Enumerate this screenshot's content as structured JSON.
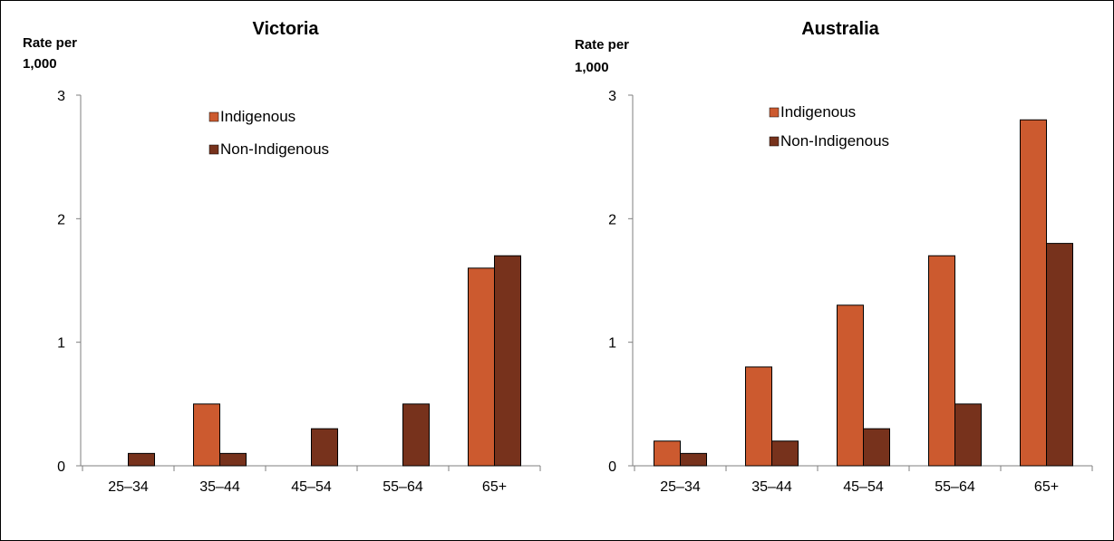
{
  "chart_data": [
    {
      "type": "bar",
      "title": "Victoria",
      "ylabel": "Rate per 1,000",
      "ylabel_lines": [
        "Rate per",
        "1,000"
      ],
      "xlabel": "",
      "categories": [
        "25–34",
        "35–44",
        "45–54",
        "55–64",
        "65+"
      ],
      "ylim": [
        0,
        3
      ],
      "yticks": [
        "0",
        "1",
        "2",
        "3"
      ],
      "legend_placement": "top-center",
      "series": [
        {
          "name": "Indigenous",
          "color": "#cc5a2f",
          "values": [
            0,
            0.5,
            0,
            0,
            1.6
          ]
        },
        {
          "name": "Non-Indigenous",
          "color": "#77321c",
          "values": [
            0.1,
            0.1,
            0.3,
            0.5,
            1.7
          ]
        }
      ]
    },
    {
      "type": "bar",
      "title": "Australia",
      "ylabel": "Rate per 1,000",
      "ylabel_lines": [
        "Rate per",
        "1,000"
      ],
      "xlabel": "",
      "categories": [
        "25–34",
        "35–44",
        "45–54",
        "55–64",
        "65+"
      ],
      "ylim": [
        0,
        3
      ],
      "yticks": [
        "0",
        "1",
        "2",
        "3"
      ],
      "legend_placement": "top-center",
      "series": [
        {
          "name": "Indigenous",
          "color": "#cc5a2f",
          "values": [
            0.2,
            0.8,
            1.3,
            1.7,
            2.8
          ]
        },
        {
          "name": "Non-Indigenous",
          "color": "#77321c",
          "values": [
            0.1,
            0.2,
            0.3,
            0.5,
            1.8
          ]
        }
      ]
    }
  ]
}
